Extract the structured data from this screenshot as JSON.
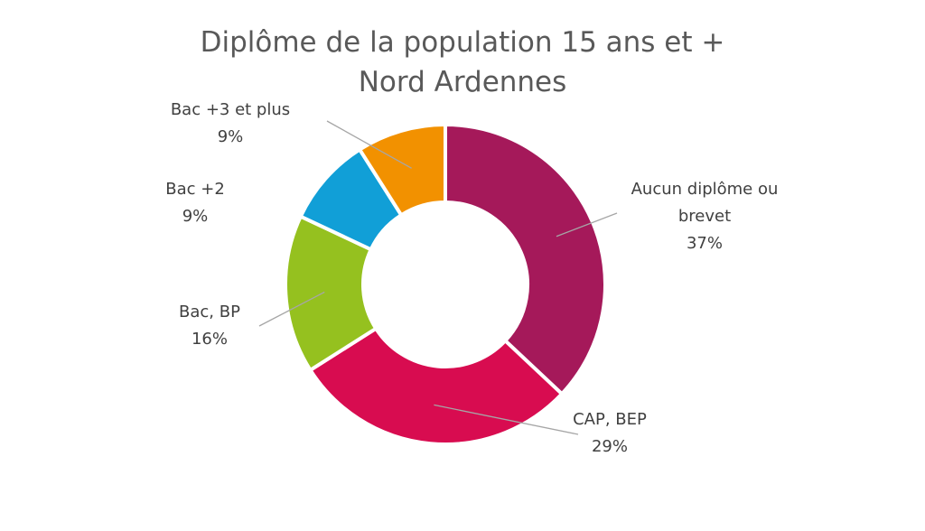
{
  "chart_data": {
    "type": "pie",
    "variant": "donut",
    "title": [
      "Diplôme de la population 15 ans et +",
      "Nord Ardennes"
    ],
    "slices": [
      {
        "label": [
          "Aucun diplôme ou",
          "brevet"
        ],
        "value": 37,
        "value_label": "37%",
        "color": "#A5195A"
      },
      {
        "label": [
          "CAP, BEP"
        ],
        "value": 29,
        "value_label": "29%",
        "color": "#D80C50"
      },
      {
        "label": [
          "Bac, BP"
        ],
        "value": 16,
        "value_label": "16%",
        "color": "#95C11F"
      },
      {
        "label": [
          "Bac +2"
        ],
        "value": 9,
        "value_label": "9%",
        "color": "#119FD7"
      },
      {
        "label": [
          "Bac +3 et plus"
        ],
        "value": 9,
        "value_label": "9%",
        "color": "#F29100"
      }
    ],
    "start_angle": "12 o'clock",
    "direction": "clockwise",
    "legend": "none"
  }
}
